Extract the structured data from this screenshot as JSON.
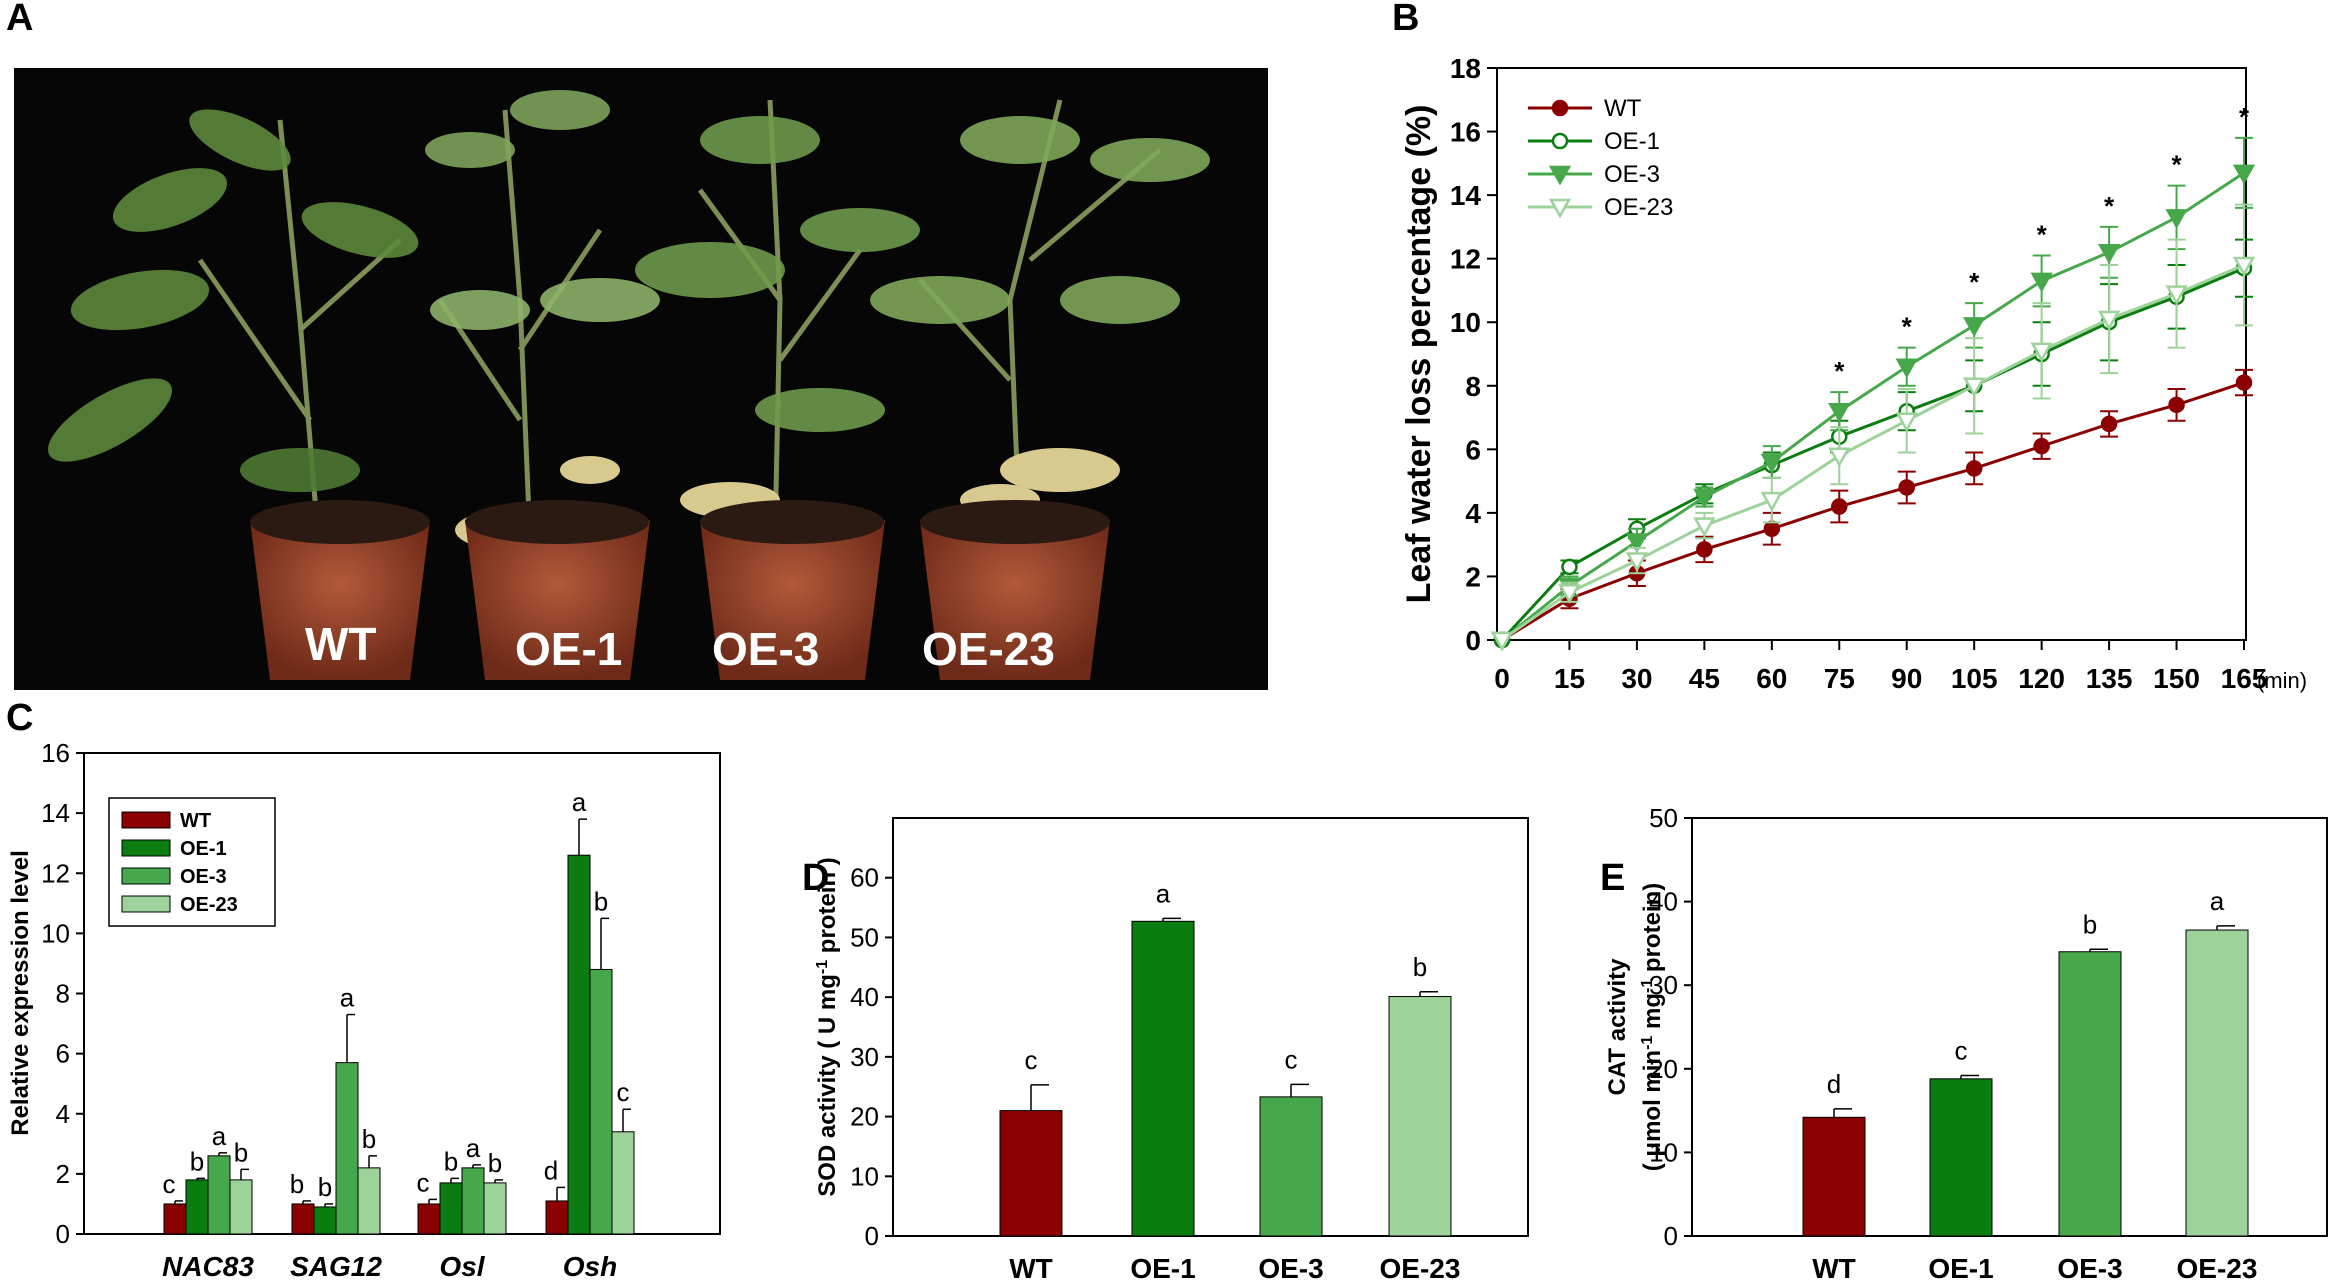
{
  "panels": {
    "A": "A",
    "B": "B",
    "C": "C",
    "D": "D",
    "E": "E"
  },
  "photo": {
    "labels": [
      "WT",
      "OE-1",
      "OE-3",
      "OE-23"
    ]
  },
  "colors": {
    "WT": "#8b0000",
    "OE-1": "#0b7d10",
    "OE-3": "#46a84a",
    "OE-23": "#9ed29b"
  },
  "chart_data": [
    {
      "id": "B",
      "type": "line",
      "ylabel": "Leaf water loss percentage (%)",
      "xunit": "(min)",
      "x": [
        0,
        15,
        30,
        45,
        60,
        75,
        90,
        105,
        120,
        135,
        150,
        165
      ],
      "ylim": [
        0,
        18
      ],
      "yticks": [
        0,
        2,
        4,
        6,
        8,
        10,
        12,
        14,
        16,
        18
      ],
      "legend_position": "top-left",
      "series": [
        {
          "name": "WT",
          "marker": "filled-circle",
          "values": [
            0,
            1.3,
            2.1,
            2.85,
            3.5,
            4.2,
            4.8,
            5.4,
            6.1,
            6.8,
            7.4,
            8.1
          ],
          "errors": [
            0,
            0.3,
            0.4,
            0.4,
            0.5,
            0.5,
            0.5,
            0.5,
            0.4,
            0.4,
            0.5,
            0.4
          ]
        },
        {
          "name": "OE-1",
          "marker": "open-circle",
          "values": [
            0,
            2.3,
            3.5,
            4.6,
            5.5,
            6.4,
            7.2,
            8.0,
            9.0,
            10.0,
            10.8,
            11.7
          ],
          "errors": [
            0,
            0.2,
            0.3,
            0.3,
            0.4,
            0.5,
            0.6,
            0.8,
            1.0,
            1.2,
            1.0,
            0.9
          ]
        },
        {
          "name": "OE-3",
          "marker": "filled-triangle-down",
          "values": [
            0,
            1.7,
            3.1,
            4.5,
            5.6,
            7.2,
            8.6,
            9.9,
            11.3,
            12.2,
            13.3,
            14.7
          ],
          "errors": [
            0,
            0.3,
            0.4,
            0.3,
            0.5,
            0.6,
            0.6,
            0.7,
            0.8,
            0.8,
            1.0,
            1.1
          ]
        },
        {
          "name": "OE-23",
          "marker": "open-triangle-down",
          "values": [
            0,
            1.5,
            2.5,
            3.6,
            4.4,
            5.8,
            6.9,
            8.0,
            9.1,
            10.1,
            10.9,
            11.8
          ],
          "errors": [
            0,
            0.3,
            0.4,
            0.4,
            0.7,
            0.9,
            1.0,
            1.5,
            1.5,
            1.7,
            1.7,
            1.9
          ]
        }
      ],
      "significance": [
        {
          "x": 75,
          "label": "*"
        },
        {
          "x": 90,
          "label": "*"
        },
        {
          "x": 105,
          "label": "*"
        },
        {
          "x": 120,
          "label": "*"
        },
        {
          "x": 135,
          "label": "*"
        },
        {
          "x": 150,
          "label": "*"
        },
        {
          "x": 165,
          "label": "*"
        }
      ]
    },
    {
      "id": "C",
      "type": "bar",
      "ylabel": "Relative expression level",
      "categories": [
        "NAC83",
        "SAG12",
        "Osl",
        "Osh"
      ],
      "ylim": [
        0,
        16
      ],
      "yticks": [
        0,
        2,
        4,
        6,
        8,
        10,
        12,
        14,
        16
      ],
      "legend_position": "top-left",
      "series": [
        {
          "name": "WT",
          "values": [
            1.0,
            1.0,
            1.0,
            1.1
          ],
          "errors": [
            0.1,
            0.1,
            0.15,
            0.45
          ],
          "letters": [
            "c",
            "b",
            "c",
            "d"
          ]
        },
        {
          "name": "OE-1",
          "values": [
            1.8,
            0.9,
            1.7,
            12.6
          ],
          "errors": [
            0.05,
            0.1,
            0.15,
            1.2
          ],
          "letters": [
            "b",
            "b",
            "b",
            "a"
          ]
        },
        {
          "name": "OE-3",
          "values": [
            2.6,
            5.7,
            2.2,
            8.8
          ],
          "errors": [
            0.1,
            1.6,
            0.1,
            1.7
          ],
          "letters": [
            "a",
            "a",
            "a",
            "b"
          ]
        },
        {
          "name": "OE-23",
          "values": [
            1.8,
            2.2,
            1.7,
            3.4
          ],
          "errors": [
            0.35,
            0.4,
            0.1,
            0.75
          ],
          "letters": [
            "b",
            "b",
            "b",
            "c"
          ]
        }
      ]
    },
    {
      "id": "D",
      "type": "bar",
      "ylabel_main": "SOD activity ( U mg",
      "ylabel_sup": "-1",
      "ylabel_tail": " protein )",
      "categories": [
        "WT",
        "OE-1",
        "OE-3",
        "OE-23"
      ],
      "values": [
        21.0,
        52.7,
        23.3,
        40.1
      ],
      "errors": [
        4.3,
        0.5,
        2.1,
        0.8
      ],
      "letters": [
        "c",
        "a",
        "c",
        "b"
      ],
      "ylim": [
        0,
        70
      ],
      "yticks": [
        0,
        10,
        20,
        30,
        40,
        50,
        60
      ]
    },
    {
      "id": "E",
      "type": "bar",
      "ylabel_line1": "CAT activity",
      "ylabel_line2_a": "( μmol min",
      "ylabel_line2_sup1": "-1",
      "ylabel_line2_b": " mg",
      "ylabel_line2_sup2": "-1",
      "ylabel_line2_c": " protein)",
      "categories": [
        "WT",
        "OE-1",
        "OE-3",
        "OE-23"
      ],
      "values": [
        14.2,
        18.8,
        34.0,
        36.6
      ],
      "errors": [
        1.0,
        0.4,
        0.3,
        0.5
      ],
      "letters": [
        "d",
        "c",
        "b",
        "a"
      ],
      "ylim": [
        0,
        50
      ],
      "yticks": [
        0,
        10,
        20,
        30,
        40,
        50
      ]
    }
  ]
}
